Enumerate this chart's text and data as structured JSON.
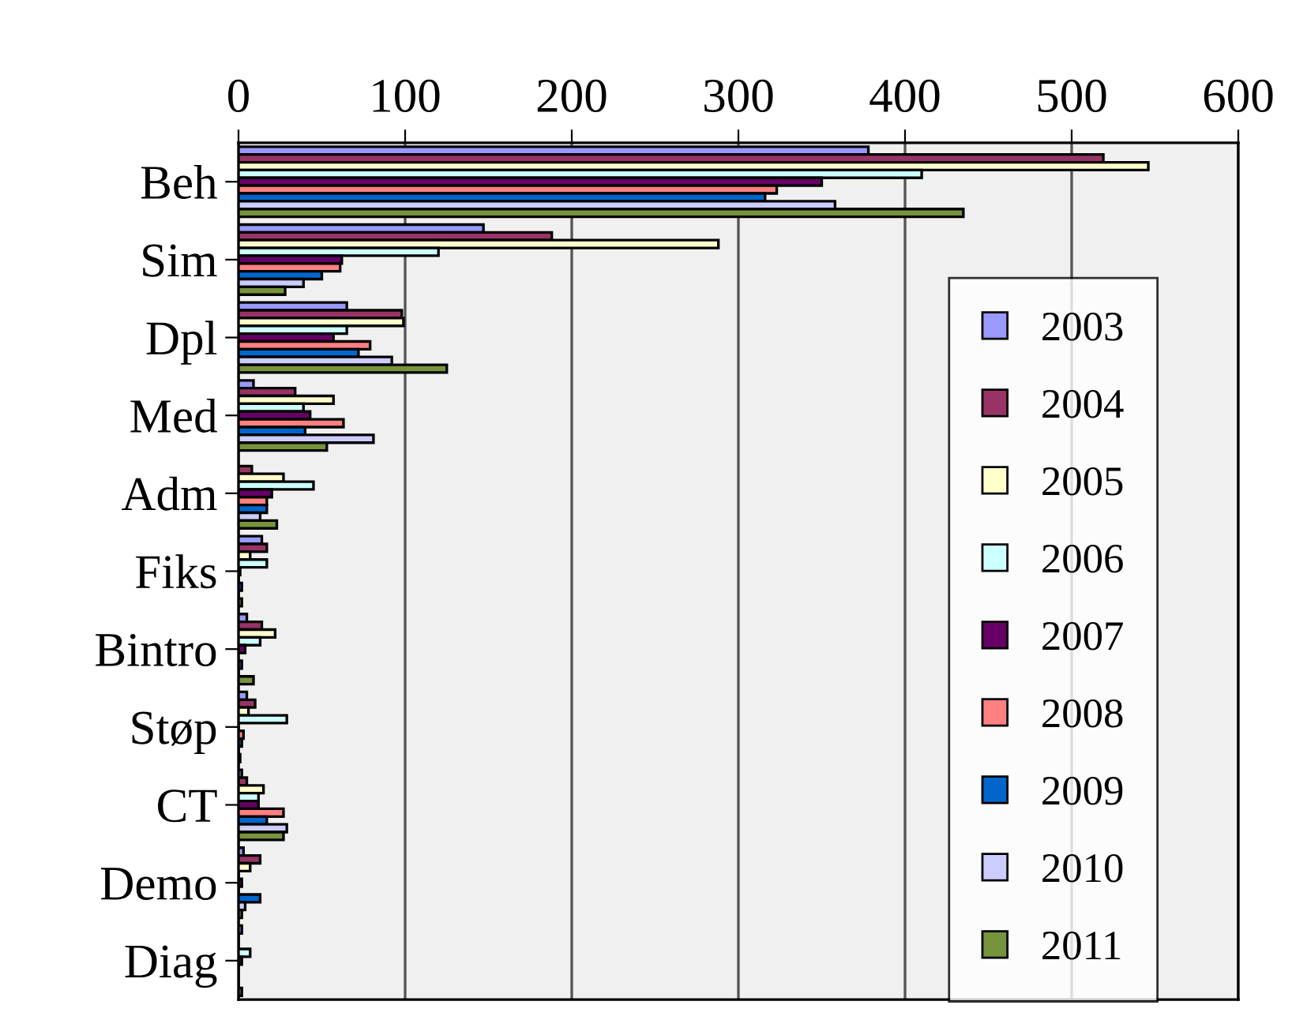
{
  "chart_data": {
    "type": "bar",
    "orientation": "horizontal",
    "categories": [
      "Beh",
      "Sim",
      "Dpl",
      "Med",
      "Adm",
      "Fiks",
      "Bintro",
      "Støp",
      "CT",
      "Demo",
      "Diag"
    ],
    "series": [
      {
        "name": "2003",
        "color": "#9999ff",
        "values": [
          378,
          147,
          65,
          9,
          null,
          14,
          5,
          5,
          2,
          3,
          2
        ]
      },
      {
        "name": "2004",
        "color": "#993366",
        "values": [
          519,
          188,
          98,
          34,
          8,
          17,
          14,
          10,
          5,
          13,
          0
        ]
      },
      {
        "name": "2005",
        "color": "#ffffcc",
        "values": [
          546,
          288,
          99,
          57,
          27,
          7,
          22,
          6,
          15,
          7,
          0
        ]
      },
      {
        "name": "2006",
        "color": "#ccffff",
        "values": [
          410,
          120,
          65,
          39,
          45,
          17,
          13,
          29,
          12,
          0,
          7
        ]
      },
      {
        "name": "2007",
        "color": "#660066",
        "values": [
          350,
          62,
          57,
          43,
          20,
          1,
          4,
          0,
          12,
          2,
          2
        ]
      },
      {
        "name": "2008",
        "color": "#ff8080",
        "values": [
          323,
          61,
          79,
          63,
          17,
          0,
          null,
          3,
          27,
          0,
          0
        ]
      },
      {
        "name": "2009",
        "color": "#0066cc",
        "values": [
          316,
          50,
          72,
          40,
          17,
          2,
          2,
          2,
          17,
          13,
          0
        ]
      },
      {
        "name": "2010",
        "color": "#ccccff",
        "values": [
          358,
          39,
          92,
          81,
          13,
          0,
          0,
          0,
          29,
          4,
          0
        ]
      },
      {
        "name": "2011",
        "color": "#77933c",
        "values": [
          435,
          28,
          125,
          53,
          23,
          2,
          9,
          1,
          27,
          2,
          2
        ]
      }
    ],
    "xlim": [
      0,
      600
    ],
    "xticks": [
      0,
      100,
      200,
      300,
      400,
      500,
      600
    ],
    "grid": "x",
    "legend": "right"
  }
}
